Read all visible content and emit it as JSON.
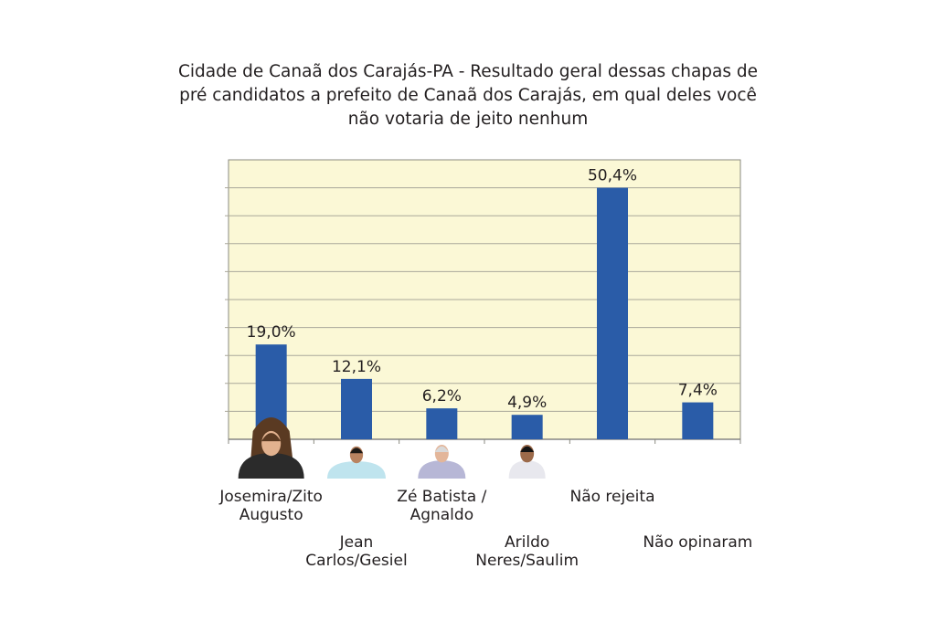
{
  "chart_data": {
    "type": "bar",
    "title": "Cidade de Canaã dos Carajás-PA - Resultado geral dessas chapas de pré candidatos a prefeito de Canaã dos Carajás, em qual deles você não votaria de jeito nenhum",
    "title_lines": [
      "Cidade de Canaã dos Carajás-PA - Resultado geral dessas chapas de",
      "pré candidatos a prefeito de Canaã dos Carajás, em qual deles você",
      "não votaria de jeito nenhum"
    ],
    "categories": [
      "Josemira/Zito Augusto",
      "Jean Carlos/Gesiel",
      "Zé Batista / Agnaldo",
      "Arildo Neres/Saulim",
      "Não rejeita",
      "Não opinaram"
    ],
    "values": [
      19.0,
      12.1,
      6.2,
      4.9,
      50.4,
      7.4
    ],
    "data_labels": [
      "19,0%",
      "12,1%",
      "6,2%",
      "4,9%",
      "50,4%",
      "7,4%"
    ],
    "xlabel": "",
    "ylabel": "",
    "ylim": [
      0,
      56
    ],
    "grid": true,
    "legend": "none",
    "colors": {
      "bar": "#2a5ca8",
      "plot_bg": "#fbf8d6",
      "grid": "#a9a79a"
    }
  }
}
